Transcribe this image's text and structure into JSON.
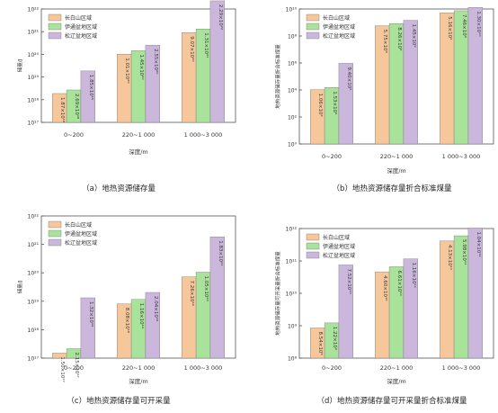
{
  "chart_data": [
    {
      "type": "bar",
      "caption": "（a）地热资源储存量",
      "xlabel": "深度/m",
      "ylabel": "储量/J",
      "scale": "log",
      "ylim_exp": [
        17,
        22
      ],
      "tick_labels": [
        "10¹⁷",
        "10¹⁸",
        "10¹⁹",
        "10²⁰",
        "10²¹",
        "10²²"
      ],
      "categories": [
        "0~200",
        "220~1 000",
        "1 000~3 000"
      ],
      "legend_position": "top-left",
      "series": [
        {
          "name": "长白山区域",
          "color": "#f6c79a",
          "values": [
            1.87e+18,
            1.01e+20,
            9.07e+20
          ],
          "labels": [
            "1.87×10¹⁸",
            "1.01×10²⁰",
            "9.07×10²⁰"
          ]
        },
        {
          "name": "伊通盆地区域",
          "color": "#a9e29a",
          "values": [
            2.69e+18,
            1.45e+20,
            1.31e+21
          ],
          "labels": [
            "2.69×10¹⁸",
            "1.45×10²⁰",
            "1.31×10²¹"
          ]
        },
        {
          "name": "松辽盆地区域",
          "color": "#cbb7dc",
          "values": [
            1.85e+19,
            2.55e+20,
            2.29e+22
          ],
          "labels": [
            "1.85×10¹⁹",
            "2.55×10²⁰",
            "2.29×10²²"
          ]
        }
      ]
    },
    {
      "type": "bar",
      "caption": "（b）地热资源储存量折合标准煤量",
      "xlabel": "深度/m",
      "ylabel": "地热资源储存量折合标准煤量",
      "scale": "log",
      "ylim_exp": [
        0,
        10
      ],
      "tick_labels": [
        "10⁰",
        "10²",
        "10⁴",
        "10⁶",
        "10⁸",
        "10¹⁰"
      ],
      "categories": [
        "0~200",
        "220~1 000",
        "1 000~3 000"
      ],
      "legend_position": "top-left",
      "series": [
        {
          "name": "长白山区域",
          "color": "#f6c79a",
          "values": [
            10600.0,
            575000000.0,
            5160000000.0
          ],
          "labels": [
            "1.06×10⁴",
            "5.75×10⁸",
            "5.16×10⁹"
          ]
        },
        {
          "name": "伊通盆地区域",
          "color": "#a9e29a",
          "values": [
            15300.0,
            826000000.0,
            7460000000.0
          ],
          "labels": [
            "1.53×10⁴",
            "8.26×10⁸",
            "7.46×10⁹"
          ]
        },
        {
          "name": "松辽盆地区域",
          "color": "#cbb7dc",
          "values": [
            940000.0,
            1450000000.0,
            13000000000.0
          ],
          "labels": [
            "9.40×10⁵",
            "1.45×10⁹",
            "1.30×10¹⁰"
          ]
        }
      ]
    },
    {
      "type": "bar",
      "caption": "（c）地热资源储存量可开采量",
      "xlabel": "深度/m",
      "ylabel": "储量/J",
      "scale": "log",
      "ylim_exp": [
        17,
        22
      ],
      "tick_labels": [
        "10¹⁷",
        "10¹⁸",
        "10¹⁹",
        "10²⁰",
        "10²¹",
        "10²²"
      ],
      "categories": [
        "0~200",
        "220~1 000",
        "1 000~3 000"
      ],
      "legend_position": "top-left",
      "series": [
        {
          "name": "长白山区域",
          "color": "#f6c79a",
          "values": [
            1.5e+17,
            8.08e+18,
            7.26e+19
          ],
          "labels": [
            "1.50×10¹⁷",
            "8.08×10¹⁸",
            "7.26×10¹⁹"
          ]
        },
        {
          "name": "伊通盆地区域",
          "color": "#a9e29a",
          "values": [
            2.15e+17,
            1.16e+19,
            1.05e+20
          ],
          "labels": [
            "2.15×10¹⁷",
            "1.16×10¹⁹",
            "1.05×10²⁰"
          ]
        },
        {
          "name": "松辽盆地区域",
          "color": "#cbb7dc",
          "values": [
            1.32e+19,
            2.04e+19,
            1.83e+21
          ],
          "labels": [
            "1.32×10¹⁹",
            "2.04×10¹⁹",
            "1.83×10²¹"
          ]
        }
      ]
    },
    {
      "type": "bar",
      "caption": "（d）地热资源储存量可开采量折合标准煤量",
      "xlabel": "深度/m",
      "ylabel": "地热资源储存量可开采量折合标准煤量",
      "scale": "log",
      "ylim_exp": [
        8,
        12
      ],
      "tick_labels": [
        "10⁸",
        "10⁹",
        "10¹⁰",
        "10¹¹",
        "10¹²"
      ],
      "categories": [
        "0~200",
        "220~1 000",
        "1 000~3 000"
      ],
      "legend_position": "top-left",
      "series": [
        {
          "name": "长白山区域",
          "color": "#f6c79a",
          "values": [
            854000000.0,
            46000000000.0,
            413000000000.0
          ],
          "labels": [
            "8.54×10⁸",
            "4.60×10¹⁰",
            "4.13×10¹¹"
          ]
        },
        {
          "name": "伊通盆地区域",
          "color": "#a9e29a",
          "values": [
            1220000000.0,
            66100000000.0,
            598000000000.0
          ],
          "labels": [
            "1.22×10⁹",
            "6.61×10¹⁰",
            "5.98×10¹¹"
          ]
        },
        {
          "name": "松辽盆地区域",
          "color": "#cbb7dc",
          "values": [
            75200000000.0,
            116000000000.0,
            1040000000000.0
          ],
          "labels": [
            "7.52×10¹⁰",
            "1.16×10¹¹",
            "1.04×10¹²"
          ]
        }
      ]
    }
  ]
}
